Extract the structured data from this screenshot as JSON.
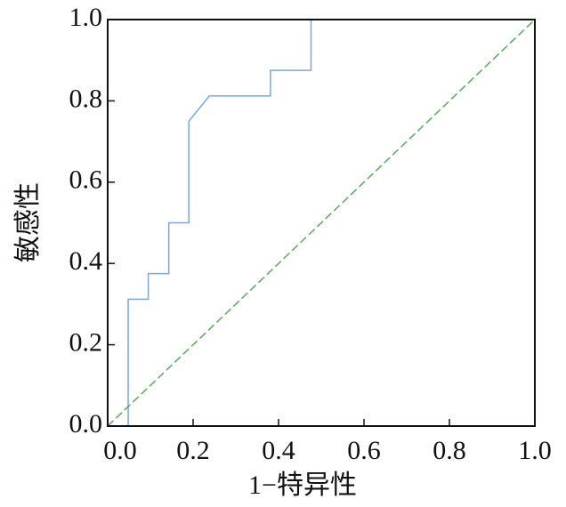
{
  "chart_data": {
    "type": "line",
    "x_label": "1−特异性",
    "y_label": "敏感性",
    "xlim": [
      0,
      1
    ],
    "ylim": [
      0,
      1
    ],
    "xticks": [
      {
        "value": 0,
        "label": "0.0"
      },
      0.2,
      0.4,
      0.6,
      0.8,
      {
        "value": 1,
        "label": "1.0"
      }
    ],
    "yticks": [
      {
        "value": 0,
        "label": "0.0"
      },
      0.2,
      0.4,
      0.6,
      0.8,
      {
        "value": 1,
        "label": "1.0"
      }
    ],
    "series": [
      {
        "color": "#7ba7d9",
        "dash": false,
        "x": [
          0.048,
          0.048,
          0.095,
          0.095,
          0.143,
          0.143,
          0.19,
          0.19,
          0.238,
          0.381,
          0.381,
          0.476,
          0.476,
          1
        ],
        "values": [
          0,
          0.312,
          0.312,
          0.375,
          0.375,
          0.5,
          0.5,
          0.75,
          0.812,
          0.812,
          0.875,
          0.875,
          1,
          1
        ]
      },
      {
        "color": "#5aaa5a",
        "dash": true,
        "x": [
          0,
          1
        ],
        "values": [
          0,
          1
        ]
      }
    ]
  }
}
